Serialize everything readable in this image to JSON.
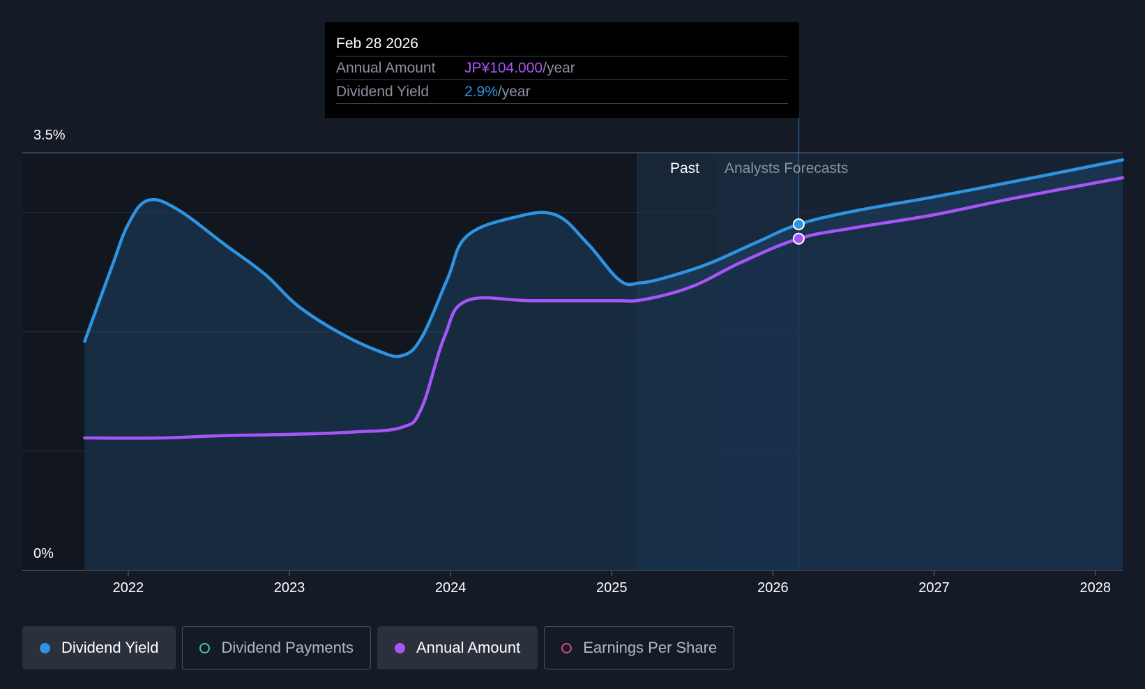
{
  "tooltip": {
    "date": "Feb 28 2026",
    "rows": [
      {
        "label": "Annual Amount",
        "value": "JP¥104.000",
        "unit": "/year"
      },
      {
        "label": "Dividend Yield",
        "value": "2.9%",
        "unit": "/year"
      }
    ]
  },
  "regions": {
    "past": "Past",
    "forecast": "Analysts Forecasts"
  },
  "legend": [
    {
      "label": "Dividend Yield",
      "color": "#2e93e0",
      "active": true,
      "filled": true
    },
    {
      "label": "Dividend Payments",
      "color": "#3ec9b4",
      "active": false,
      "filled": false
    },
    {
      "label": "Annual Amount",
      "color": "#a855f7",
      "active": true,
      "filled": true
    },
    {
      "label": "Earnings Per Share",
      "color": "#d9467f",
      "active": false,
      "filled": false
    }
  ],
  "chart_data": {
    "type": "line",
    "x_ticks": [
      "2022",
      "2023",
      "2024",
      "2025",
      "2026",
      "2027",
      "2028"
    ],
    "y_tick_labels": [
      "0%",
      "3.5%"
    ],
    "ylim": [
      0,
      3.5
    ],
    "xlim": [
      2021.62,
      2028.17
    ],
    "divider_x": 2025.16,
    "forecast_shade_start": 2025.64,
    "highlight_x": 2026.16,
    "colors": {
      "yield": "#2e93e0",
      "amount": "#a855f7"
    },
    "series": [
      {
        "name": "Dividend Yield",
        "unit": "%",
        "points": [
          [
            2021.73,
            1.92
          ],
          [
            2021.9,
            2.55
          ],
          [
            2022.0,
            2.9
          ],
          [
            2022.12,
            3.1
          ],
          [
            2022.3,
            3.03
          ],
          [
            2022.6,
            2.73
          ],
          [
            2022.85,
            2.48
          ],
          [
            2023.05,
            2.22
          ],
          [
            2023.3,
            2.0
          ],
          [
            2023.55,
            1.84
          ],
          [
            2023.7,
            1.8
          ],
          [
            2023.82,
            1.95
          ],
          [
            2023.98,
            2.44
          ],
          [
            2024.1,
            2.8
          ],
          [
            2024.4,
            2.96
          ],
          [
            2024.65,
            2.98
          ],
          [
            2024.85,
            2.74
          ],
          [
            2025.05,
            2.43
          ],
          [
            2025.18,
            2.41
          ],
          [
            2025.35,
            2.46
          ],
          [
            2025.6,
            2.57
          ],
          [
            2025.9,
            2.75
          ],
          [
            2026.16,
            2.9
          ],
          [
            2026.5,
            3.01
          ],
          [
            2027.0,
            3.13
          ],
          [
            2027.5,
            3.26
          ],
          [
            2028.17,
            3.44
          ]
        ]
      },
      {
        "name": "Annual Amount",
        "unit": "JP¥",
        "points": [
          [
            2021.73,
            1.11
          ],
          [
            2022.2,
            1.11
          ],
          [
            2022.6,
            1.13
          ],
          [
            2023.0,
            1.14
          ],
          [
            2023.4,
            1.16
          ],
          [
            2023.7,
            1.2
          ],
          [
            2023.82,
            1.36
          ],
          [
            2023.96,
            1.95
          ],
          [
            2024.1,
            2.26
          ],
          [
            2024.5,
            2.26
          ],
          [
            2025.0,
            2.26
          ],
          [
            2025.2,
            2.27
          ],
          [
            2025.5,
            2.38
          ],
          [
            2025.8,
            2.58
          ],
          [
            2026.16,
            2.78
          ],
          [
            2026.5,
            2.87
          ],
          [
            2027.0,
            2.98
          ],
          [
            2027.5,
            3.12
          ],
          [
            2028.17,
            3.29
          ]
        ]
      }
    ]
  }
}
